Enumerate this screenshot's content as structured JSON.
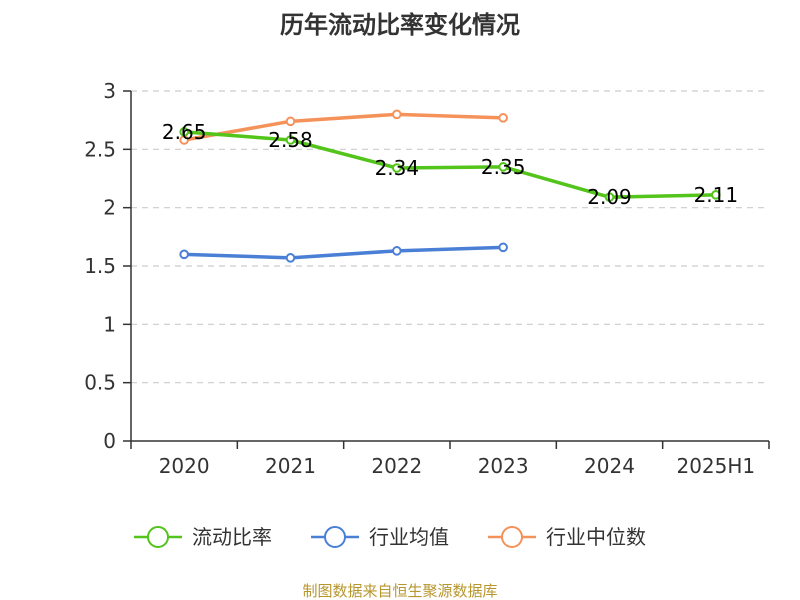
{
  "source_note": "制图数据来自恒生聚源数据库",
  "chart_data": {
    "type": "line",
    "title": "历年流动比率变化情况",
    "categories": [
      "2020",
      "2021",
      "2022",
      "2023",
      "2024",
      "2025H1"
    ],
    "ylim": [
      0,
      3
    ],
    "yticks": [
      "0",
      "0.5",
      "1",
      "1.5",
      "2",
      "2.5",
      "3"
    ],
    "grid": true,
    "legend_position": "bottom",
    "series": [
      {
        "name": "流动比率",
        "color": "#52c41a",
        "values": [
          2.65,
          2.58,
          2.34,
          2.35,
          2.09,
          2.11
        ],
        "labels": [
          "2.65",
          "2.58",
          "2.34",
          "2.35",
          "2.09",
          "2.11"
        ]
      },
      {
        "name": "行业均值",
        "color": "#4a7fd6",
        "values": [
          1.6,
          1.57,
          1.63,
          1.66,
          null,
          null
        ]
      },
      {
        "name": "行业中位数",
        "color": "#f5925a",
        "values": [
          2.58,
          2.74,
          2.8,
          2.77,
          null,
          null
        ]
      }
    ]
  }
}
